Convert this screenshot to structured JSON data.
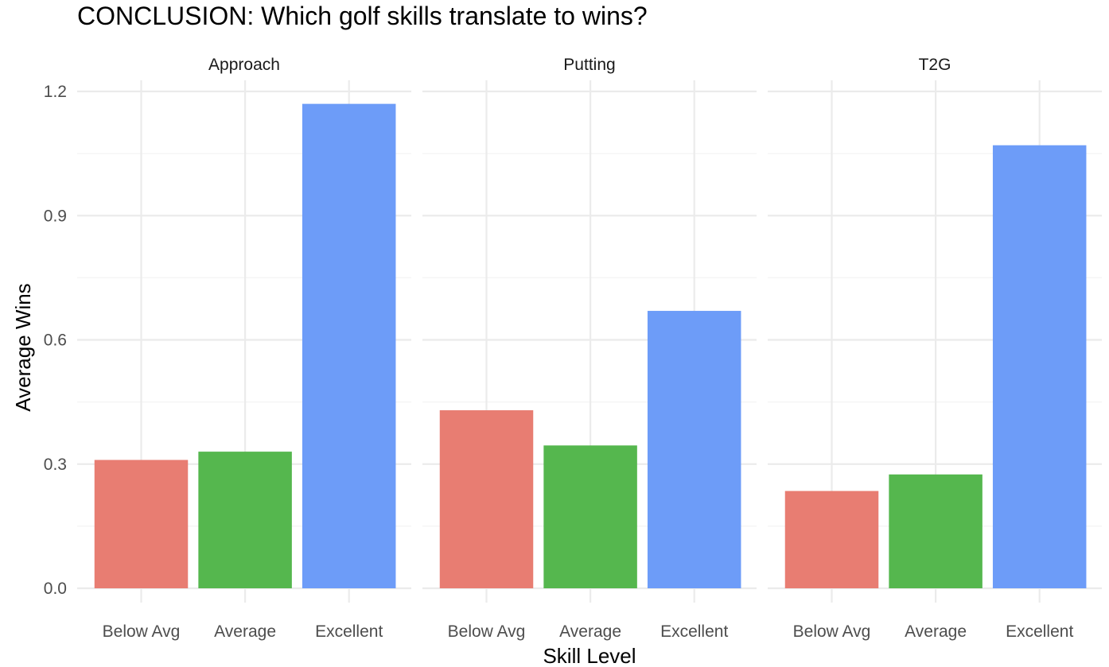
{
  "chart_data": {
    "type": "bar",
    "title": "CONCLUSION: Which golf skills translate to wins?",
    "xlabel": "Skill Level",
    "ylabel": "Average Wins",
    "ylim": [
      0,
      1.2
    ],
    "yticks": [
      "0.0",
      "0.3",
      "0.6",
      "0.9",
      "1.2"
    ],
    "grid": true,
    "legend": "none",
    "categories": [
      "Below Avg",
      "Average",
      "Excellent"
    ],
    "category_colors": [
      "#E87D72",
      "#55B74E",
      "#6D9CF8"
    ],
    "facets": [
      {
        "name": "Approach",
        "values": [
          0.31,
          0.33,
          1.17
        ]
      },
      {
        "name": "Putting",
        "values": [
          0.43,
          0.345,
          0.67
        ]
      },
      {
        "name": "T2G",
        "values": [
          0.235,
          0.275,
          1.07
        ]
      }
    ]
  },
  "colors": {
    "background": "#ffffff",
    "grid_major": "#EBEBEB",
    "grid_minor": "#F4F4F4",
    "axis_text": "#4D4D4D",
    "title_text": "#000000"
  }
}
